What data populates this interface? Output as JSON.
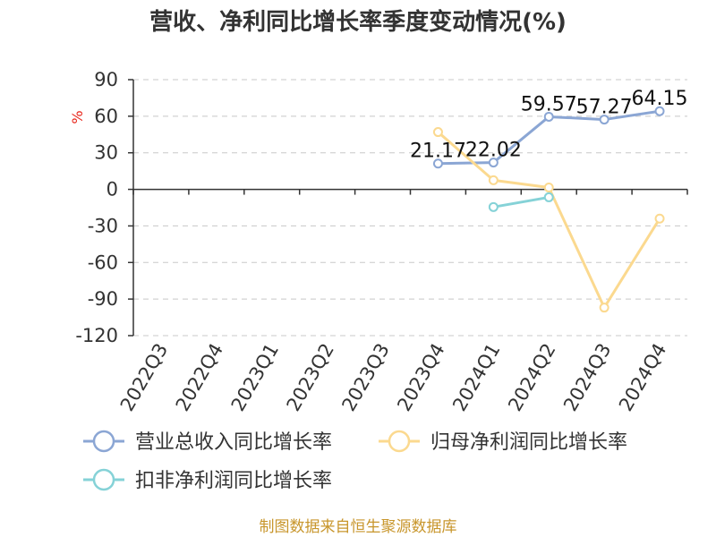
{
  "chart_data": {
    "type": "line",
    "title": "营收、净利同比增长率季度变动情况(%)",
    "ylabel": "%",
    "categories": [
      "2022Q3",
      "2022Q4",
      "2023Q1",
      "2023Q2",
      "2023Q3",
      "2023Q4",
      "2024Q1",
      "2024Q2",
      "2024Q3",
      "2024Q4"
    ],
    "ylim": [
      -120,
      90
    ],
    "yticks": [
      90,
      60,
      30,
      0,
      -30,
      -60,
      -90,
      -120
    ],
    "grid": true,
    "legend_position": "bottom-left",
    "series": [
      {
        "name": "营业总收入同比增长率",
        "color": "#8ba6d4",
        "values": [
          null,
          null,
          null,
          null,
          null,
          21.17,
          22.02,
          59.57,
          57.27,
          64.15
        ],
        "labels": [
          null,
          null,
          null,
          null,
          null,
          "21.17",
          "22.02",
          "59.57",
          "57.27",
          "64.15"
        ]
      },
      {
        "name": "归母净利润同比增长率",
        "color": "#fbd98f",
        "values": [
          null,
          null,
          null,
          null,
          null,
          47,
          7.5,
          1.5,
          -97,
          -24
        ],
        "labels": [
          null,
          null,
          null,
          null,
          null,
          null,
          null,
          null,
          null,
          null
        ]
      },
      {
        "name": "扣非净利润同比增长率",
        "color": "#85d2d7",
        "values": [
          null,
          null,
          null,
          null,
          null,
          null,
          -14.5,
          -6.5,
          null,
          null
        ],
        "labels": [
          null,
          null,
          null,
          null,
          null,
          null,
          null,
          null,
          null,
          null
        ]
      }
    ]
  },
  "source": "制图数据来自恒生聚源数据库"
}
